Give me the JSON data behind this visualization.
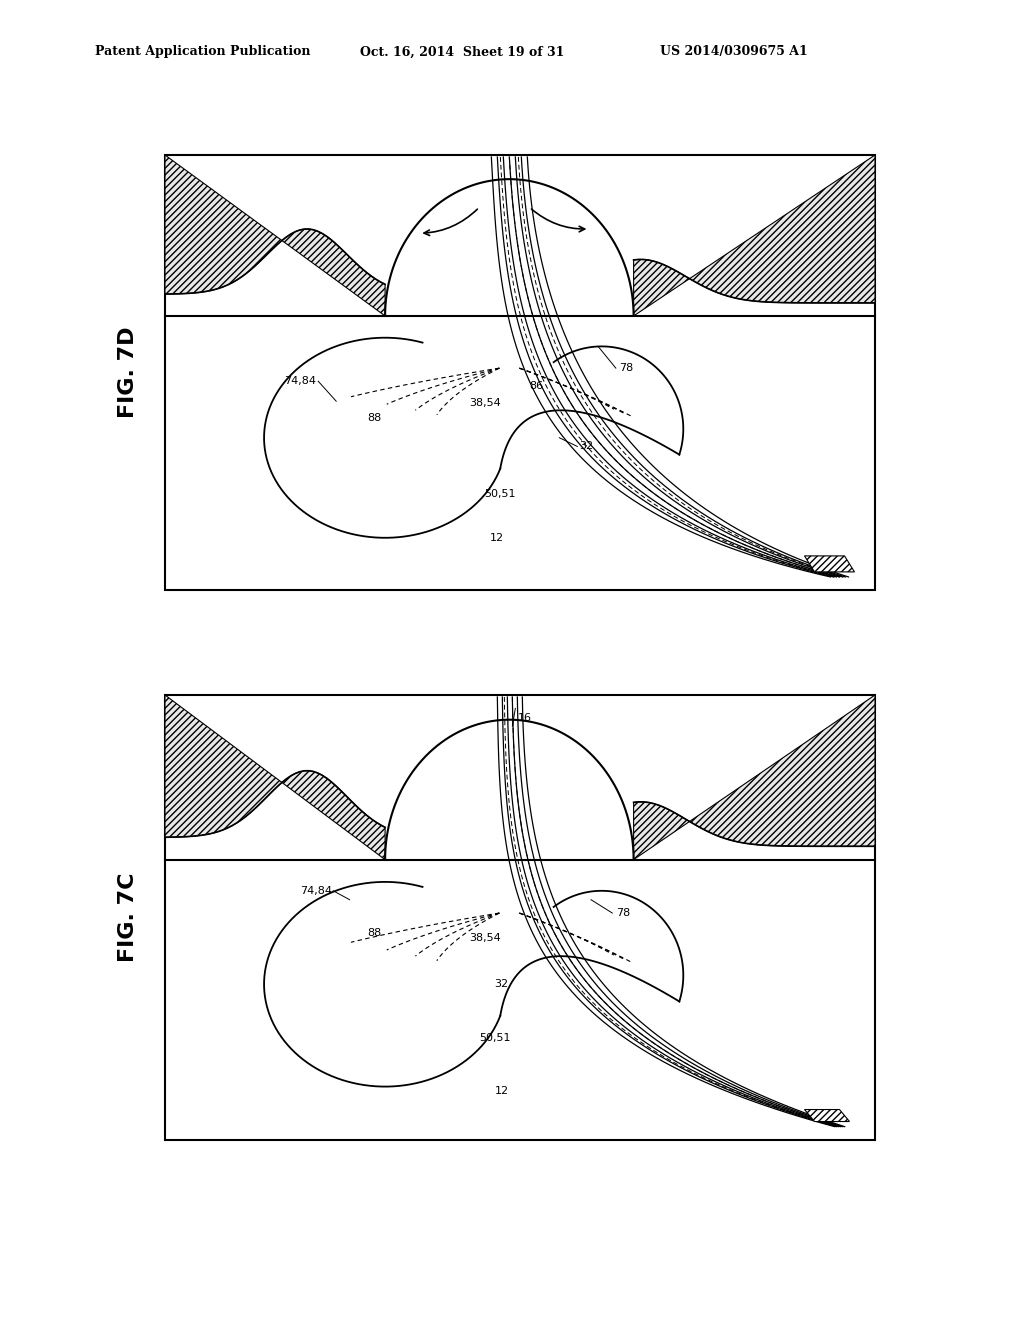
{
  "bg_color": "#ffffff",
  "header_text": "Patent Application Publication",
  "header_date": "Oct. 16, 2014  Sheet 19 of 31",
  "header_patent": "US 2014/0309675 A1",
  "fig_7d_label": "FIG. 7D",
  "fig_7c_label": "FIG. 7C",
  "box7d": [
    165,
    155,
    875,
    590
  ],
  "box7c": [
    165,
    695,
    875,
    1140
  ],
  "label_fontsize": 8,
  "fig_label_fontsize": 16
}
